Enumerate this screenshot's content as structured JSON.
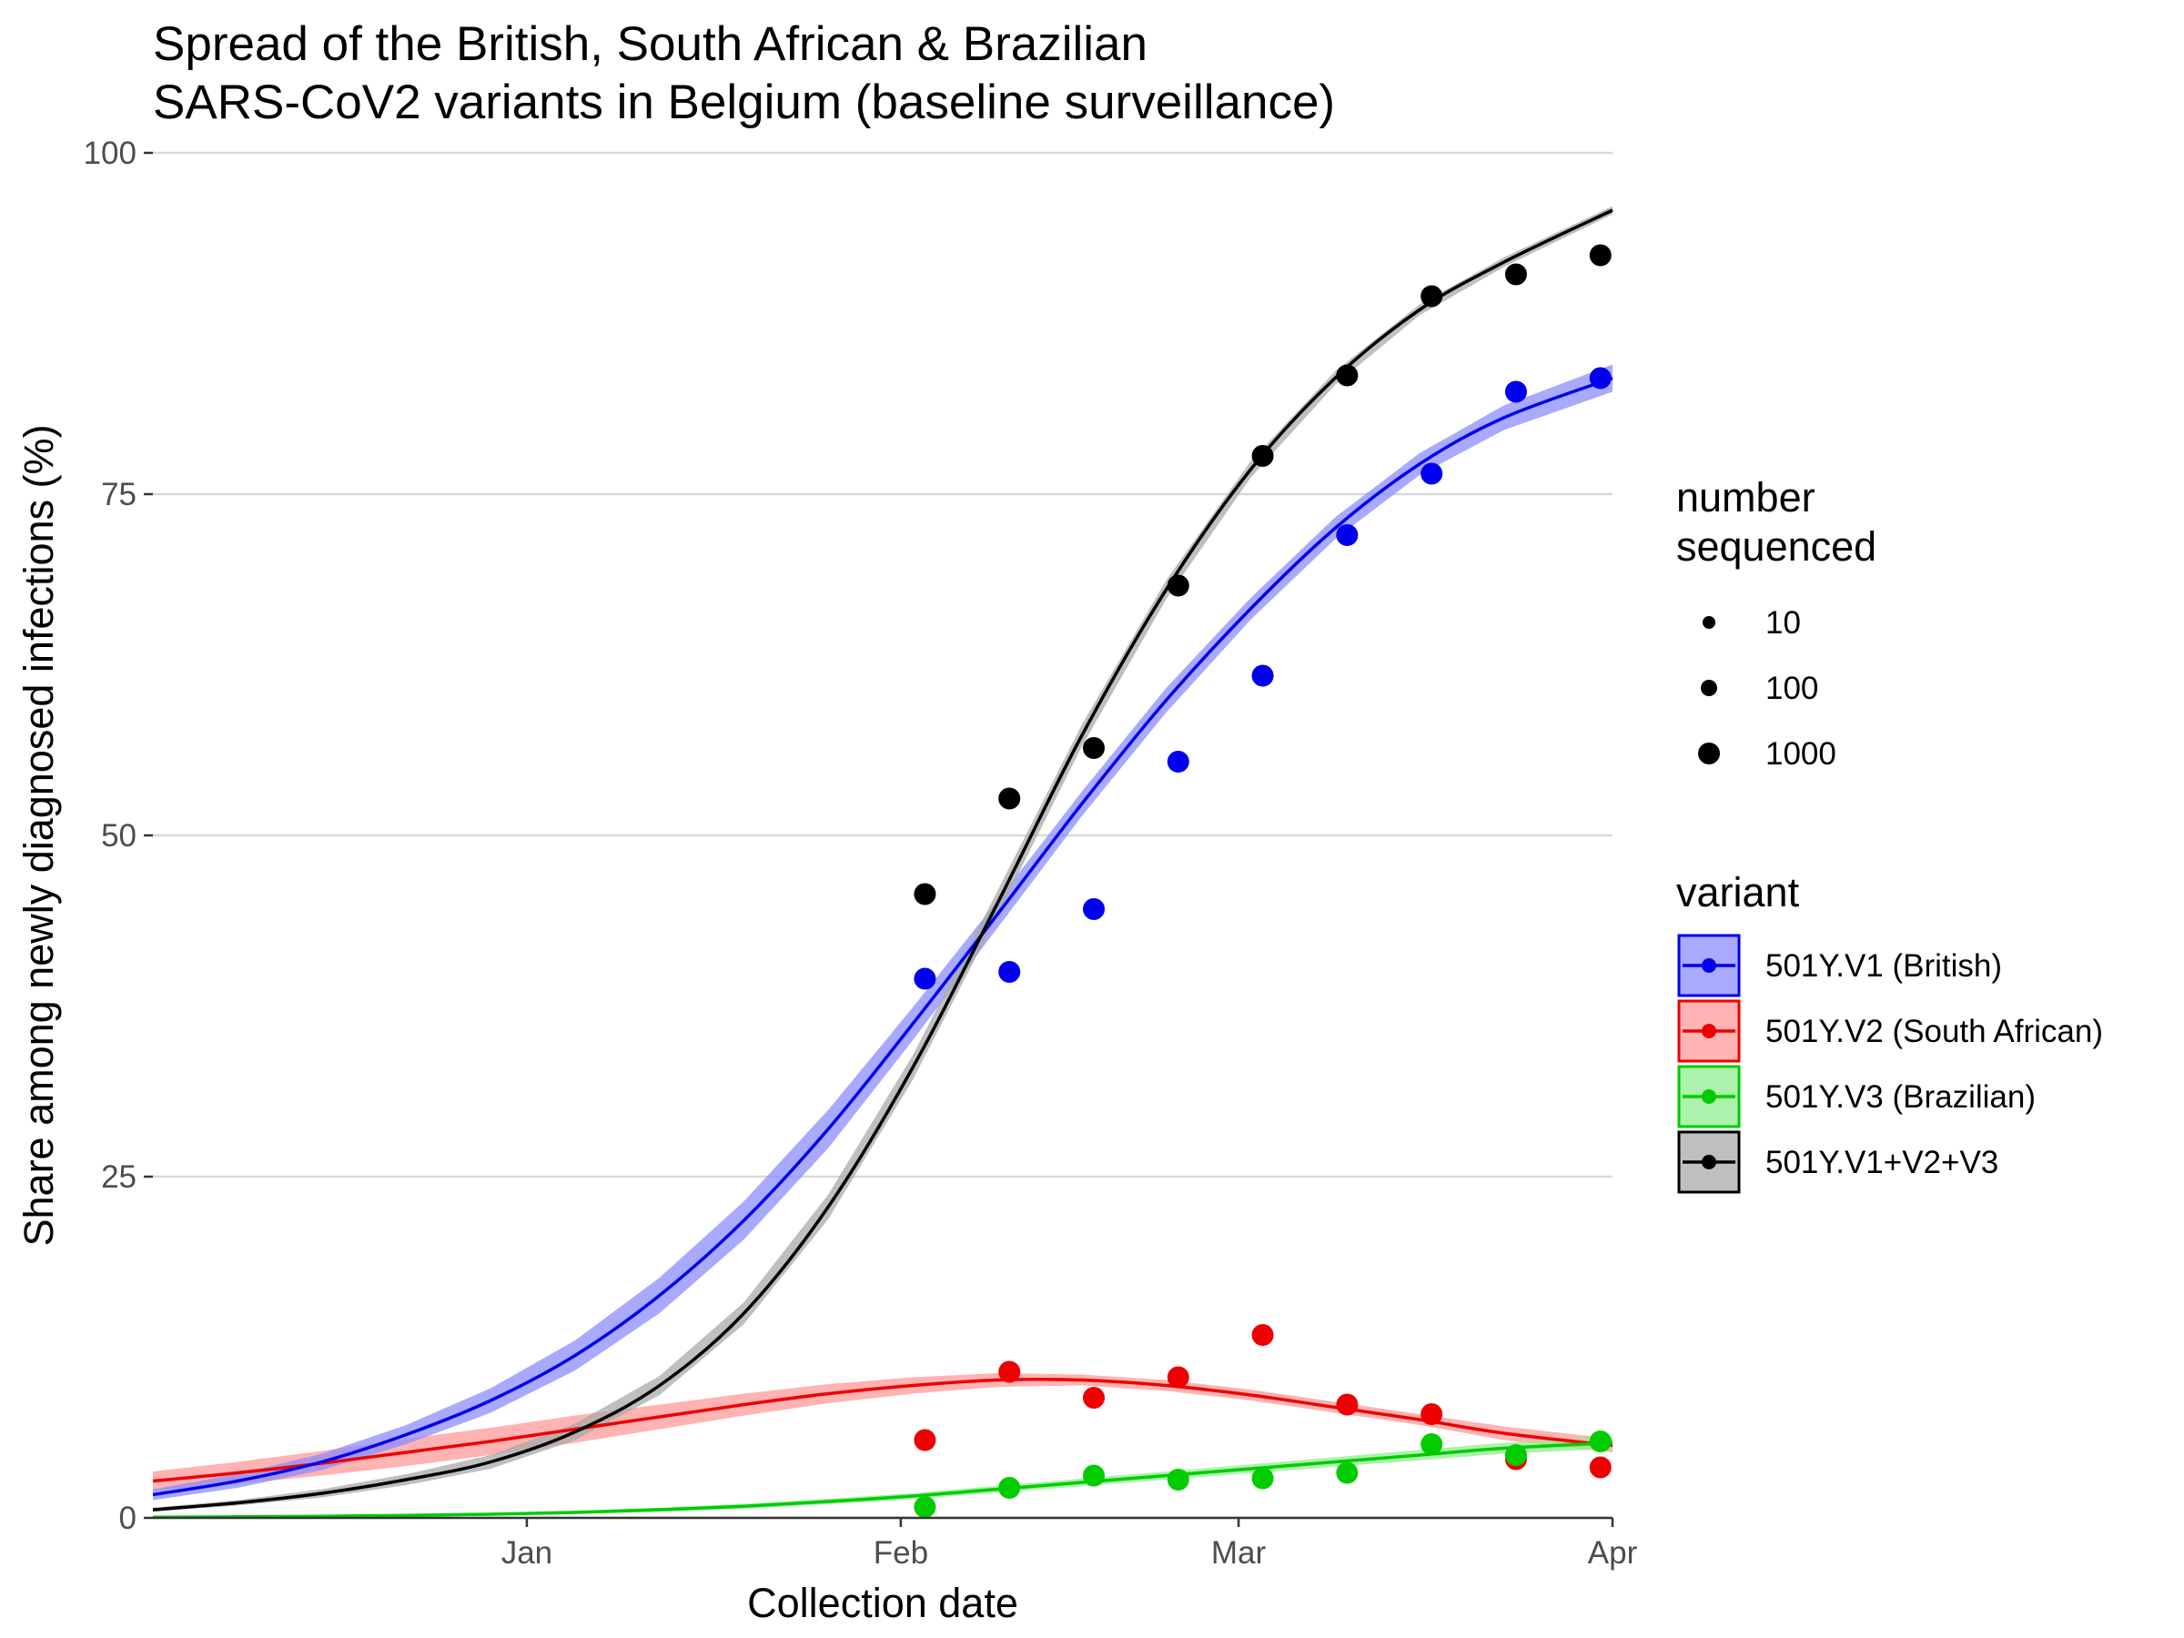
{
  "chart_data": {
    "type": "line",
    "title": "Spread of the British, South African & Brazilian\nSARS-CoV2 variants in Belgium (baseline surveillance)",
    "xlabel": "Collection date",
    "ylabel": "Share among newly diagnosed infections (%)",
    "x_range": [
      "2020-12-01",
      "2021-04-01"
    ],
    "ylim": [
      0,
      100
    ],
    "y_ticks": [
      0,
      25,
      50,
      75,
      100
    ],
    "x_ticks": [
      {
        "label": "Jan",
        "date": "2021-01-01"
      },
      {
        "label": "Feb",
        "date": "2021-02-01"
      },
      {
        "label": "Mar",
        "date": "2021-03-01"
      },
      {
        "label": "Apr",
        "date": "2021-04-01"
      }
    ],
    "grid": true,
    "legend_position": "right",
    "size_legend": {
      "title": "number\nsequenced",
      "entries": [
        "10",
        "100",
        "1000"
      ]
    },
    "color_legend": {
      "title": "variant"
    },
    "observation_dates": [
      "2021-02-03",
      "2021-02-10",
      "2021-02-17",
      "2021-02-24",
      "2021-03-03",
      "2021-03-10",
      "2021-03-17",
      "2021-03-24",
      "2021-03-31"
    ],
    "fit_dates": [
      "2020-12-01",
      "2020-12-08",
      "2020-12-15",
      "2020-12-22",
      "2020-12-29",
      "2021-01-05",
      "2021-01-12",
      "2021-01-19",
      "2021-01-26",
      "2021-02-02",
      "2021-02-09",
      "2021-02-16",
      "2021-02-23",
      "2021-03-02",
      "2021-03-09",
      "2021-03-16",
      "2021-03-23",
      "2021-04-01"
    ],
    "series": [
      {
        "name": "501Y.V1 (British)",
        "color": "#0000ee",
        "ribbon_color": "#8c8cff",
        "points": [
          39.5,
          40,
          44.6,
          55.4,
          61.7,
          72,
          76.5,
          82.5,
          83.5
        ],
        "fit": [
          1.7,
          2.7,
          4.1,
          6.1,
          8.6,
          11.9,
          16.3,
          21.8,
          28.5,
          36.2,
          44.2,
          52.3,
          59.9,
          66.6,
          72.5,
          77.2,
          80.6,
          83.5
        ],
        "ribbon_half_width": [
          0.4,
          0.5,
          0.6,
          0.7,
          0.9,
          1.1,
          1.3,
          1.4,
          1.4,
          1.2,
          1.0,
          0.9,
          0.9,
          0.8,
          0.8,
          0.8,
          0.9,
          1.0
        ]
      },
      {
        "name": "501Y.V2 (South African)",
        "color": "#ee0000",
        "ribbon_color": "#ff9a9a",
        "points": [
          5.7,
          10.7,
          8.8,
          10.3,
          13.4,
          8.3,
          7.6,
          4.3,
          3.7
        ],
        "fit": [
          2.7,
          3.3,
          4.0,
          4.8,
          5.6,
          6.5,
          7.4,
          8.3,
          9.1,
          9.7,
          10.1,
          10.1,
          9.7,
          9.0,
          8.1,
          7.2,
          6.2,
          5.3
        ],
        "ribbon_half_width": [
          0.7,
          0.8,
          0.9,
          1.0,
          1.0,
          1.0,
          0.9,
          0.8,
          0.7,
          0.6,
          0.5,
          0.4,
          0.4,
          0.4,
          0.4,
          0.4,
          0.5,
          0.5
        ]
      },
      {
        "name": "501Y.V3 (Brazilian)",
        "color": "#00cc00",
        "ribbon_color": "#90ee90",
        "points": [
          0.8,
          2.2,
          3.1,
          2.8,
          2.9,
          3.3,
          5.4,
          4.6,
          5.6
        ],
        "fit": [
          0.05,
          0.08,
          0.12,
          0.18,
          0.27,
          0.4,
          0.6,
          0.85,
          1.2,
          1.6,
          2.1,
          2.6,
          3.1,
          3.6,
          4.1,
          4.6,
          5.1,
          5.5
        ],
        "ribbon_half_width": [
          0.03,
          0.04,
          0.05,
          0.07,
          0.09,
          0.12,
          0.15,
          0.18,
          0.2,
          0.22,
          0.25,
          0.28,
          0.3,
          0.32,
          0.35,
          0.38,
          0.4,
          0.45
        ]
      },
      {
        "name": "501Y.V1+V2+V3",
        "color": "#000000",
        "ribbon_color": "#aaaaaa",
        "points": [
          45.7,
          52.7,
          56.4,
          68.3,
          77.8,
          83.7,
          89.5,
          91.1,
          92.5
        ],
        "fit": [
          0.6,
          1.1,
          1.8,
          2.8,
          4.1,
          6.3,
          9.7,
          15.0,
          22.8,
          33.0,
          45.0,
          57.3,
          68.0,
          76.8,
          83.5,
          88.5,
          92.0,
          95.8
        ],
        "ribbon_half_width": [
          0.15,
          0.2,
          0.3,
          0.4,
          0.5,
          0.6,
          0.7,
          0.8,
          0.9,
          0.9,
          0.9,
          0.8,
          0.7,
          0.6,
          0.5,
          0.4,
          0.35,
          0.3
        ]
      }
    ]
  }
}
